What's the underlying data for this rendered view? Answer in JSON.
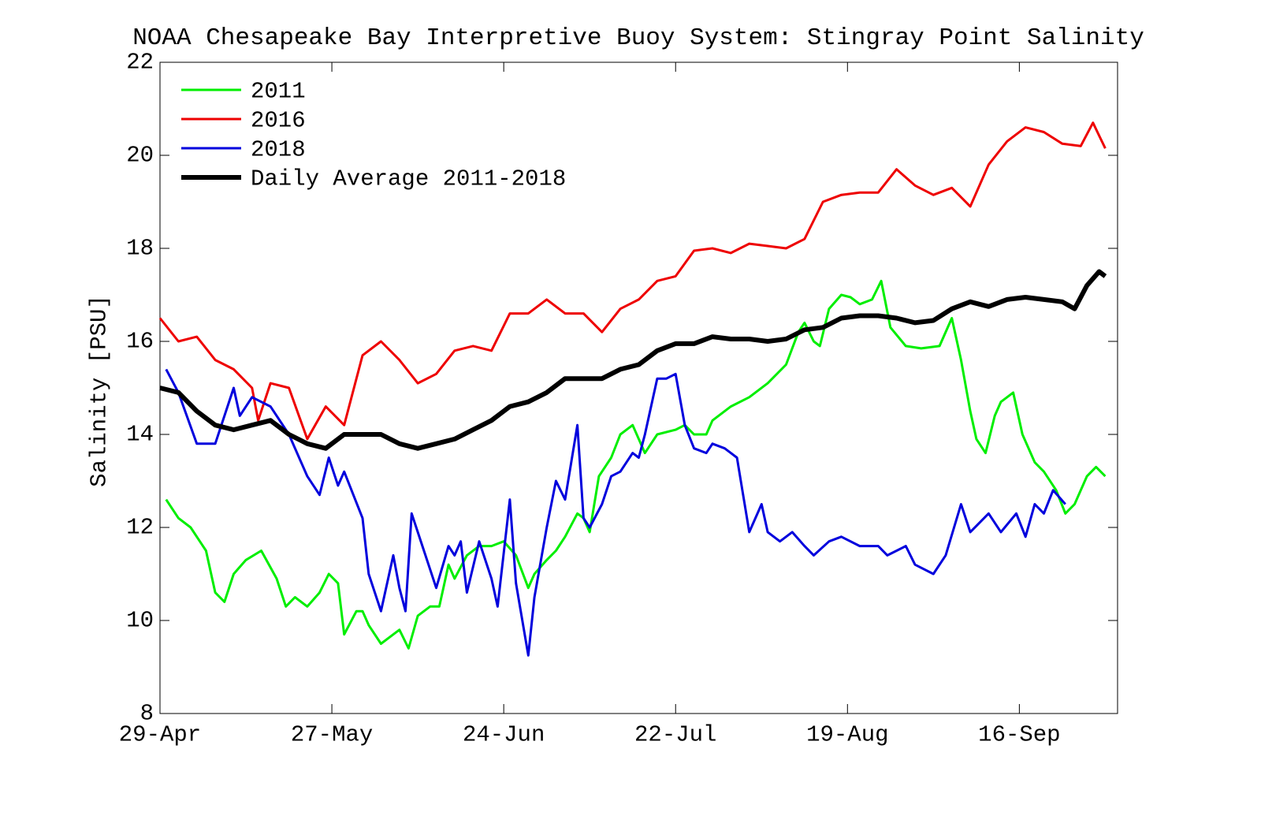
{
  "chart_data": {
    "type": "line",
    "title": "NOAA Chesapeake Bay Interpretive Buoy System: Stingray Point Salinity",
    "y_label": "Salinity [PSU]",
    "xlim": [
      0,
      156
    ],
    "xticks": [
      {
        "value": 0,
        "label": "29-Apr"
      },
      {
        "value": 28,
        "label": "27-May"
      },
      {
        "value": 56,
        "label": "24-Jun"
      },
      {
        "value": 84,
        "label": "22-Jul"
      },
      {
        "value": 112,
        "label": "19-Aug"
      },
      {
        "value": 140,
        "label": "16-Sep"
      }
    ],
    "ylim": [
      8,
      22
    ],
    "yticks": [
      8,
      10,
      12,
      14,
      16,
      18,
      20,
      22
    ],
    "legend": "upper left",
    "series": [
      {
        "name": "2011",
        "color": "#00ee00",
        "width": 3,
        "x": [
          1,
          3,
          5,
          7.5,
          9,
          10.5,
          12,
          14,
          16.5,
          19,
          20.5,
          22,
          24,
          26,
          27.5,
          29,
          30,
          32,
          33,
          34,
          36,
          38,
          39,
          40.5,
          42,
          44,
          45.5,
          47,
          48,
          50,
          52,
          54,
          56,
          58,
          60,
          61,
          63,
          64.5,
          66,
          68,
          69,
          70,
          71.5,
          73.5,
          75,
          77,
          79,
          81,
          84,
          85.5,
          87,
          89,
          90,
          93,
          96,
          99,
          102,
          104,
          105,
          106.5,
          107.5,
          109,
          111,
          112.5,
          114,
          116,
          117.5,
          119,
          121.5,
          124,
          127,
          129,
          130.5,
          132,
          133,
          134.5,
          136,
          137,
          139,
          140.5,
          142.5,
          144,
          146,
          147.5,
          149,
          151,
          152.5,
          154
        ],
        "values": [
          12.6,
          12.2,
          12.0,
          11.5,
          10.6,
          10.4,
          11.0,
          11.3,
          11.5,
          10.9,
          10.3,
          10.5,
          10.3,
          10.6,
          11.0,
          10.8,
          9.7,
          10.2,
          10.2,
          9.9,
          9.5,
          9.7,
          9.8,
          9.4,
          10.1,
          10.3,
          10.3,
          11.2,
          10.9,
          11.4,
          11.6,
          11.6,
          11.7,
          11.4,
          10.7,
          11.0,
          11.3,
          11.5,
          11.8,
          12.3,
          12.2,
          11.9,
          13.1,
          13.5,
          14.0,
          14.2,
          13.6,
          14.0,
          14.1,
          14.2,
          14.0,
          14.0,
          14.3,
          14.6,
          14.8,
          15.1,
          15.5,
          16.2,
          16.4,
          16.0,
          15.9,
          16.7,
          17.0,
          16.95,
          16.8,
          16.9,
          17.3,
          16.3,
          15.9,
          15.85,
          15.9,
          16.5,
          15.6,
          14.5,
          13.9,
          13.6,
          14.4,
          14.7,
          14.9,
          14.0,
          13.4,
          13.2,
          12.8,
          12.3,
          12.5,
          13.1,
          13.3,
          13.1
        ]
      },
      {
        "name": "2016",
        "color": "#ee0000",
        "width": 3,
        "x": [
          0,
          3,
          6,
          9,
          12,
          15,
          16,
          18,
          21,
          24,
          27,
          30,
          33,
          36,
          39,
          42,
          45,
          48,
          51,
          54,
          57,
          60,
          63,
          66,
          69,
          72,
          75,
          78,
          81,
          84,
          87,
          90,
          93,
          96,
          99,
          102,
          105,
          108,
          111,
          114,
          117,
          120,
          123,
          126,
          129,
          132,
          135,
          138,
          141,
          144,
          147,
          150,
          152,
          154
        ],
        "values": [
          16.5,
          16.0,
          16.1,
          15.6,
          15.4,
          15.0,
          14.3,
          15.1,
          15.0,
          13.9,
          14.6,
          14.2,
          15.7,
          16.0,
          15.6,
          15.1,
          15.3,
          15.8,
          15.9,
          15.8,
          16.6,
          16.6,
          16.9,
          16.6,
          16.6,
          16.2,
          16.7,
          16.9,
          17.3,
          17.4,
          17.95,
          18.0,
          17.9,
          18.1,
          18.05,
          18.0,
          18.2,
          19.0,
          19.15,
          19.2,
          19.2,
          19.7,
          19.35,
          19.15,
          19.3,
          18.9,
          19.8,
          20.3,
          20.6,
          20.5,
          20.25,
          20.2,
          20.7,
          20.15
        ]
      },
      {
        "name": "2018",
        "color": "#0000dd",
        "width": 3,
        "x": [
          1,
          3,
          6,
          9,
          12,
          13,
          15,
          18,
          21,
          24,
          26,
          27.5,
          29,
          30,
          33,
          34,
          36,
          38,
          39,
          40,
          41,
          43,
          45,
          47,
          48,
          49,
          50,
          52,
          54,
          55,
          57,
          58,
          60,
          61,
          63,
          64.5,
          66,
          68,
          69,
          70,
          72,
          73.5,
          75,
          77,
          78,
          79,
          81,
          82.5,
          84,
          85.5,
          87,
          89,
          90,
          92,
          93,
          94,
          95,
          96,
          98,
          99,
          101,
          103,
          105,
          106.5,
          109,
          111,
          114,
          117,
          118.5,
          121.5,
          123,
          126,
          128,
          130.5,
          132,
          135,
          137,
          139.5,
          141,
          142.5,
          144,
          145.5,
          147.5
        ],
        "values": [
          15.4,
          14.9,
          13.8,
          13.8,
          15.0,
          14.4,
          14.8,
          14.6,
          14.0,
          13.1,
          12.7,
          13.5,
          12.9,
          13.2,
          12.2,
          11.0,
          10.2,
          11.4,
          10.7,
          10.2,
          12.3,
          11.5,
          10.7,
          11.6,
          11.4,
          11.7,
          10.6,
          11.7,
          10.9,
          10.3,
          12.6,
          10.8,
          9.25,
          10.5,
          12.0,
          13.0,
          12.6,
          14.2,
          12.2,
          12.0,
          12.5,
          13.1,
          13.2,
          13.6,
          13.5,
          14.0,
          15.2,
          15.2,
          15.3,
          14.2,
          13.7,
          13.6,
          13.8,
          13.7,
          13.6,
          13.5,
          12.7,
          11.9,
          12.5,
          11.9,
          11.7,
          11.9,
          11.6,
          11.4,
          11.7,
          11.8,
          11.6,
          11.6,
          11.4,
          11.6,
          11.2,
          11.0,
          11.4,
          12.5,
          11.9,
          12.3,
          11.9,
          12.3,
          11.8,
          12.5,
          12.3,
          12.8,
          12.5
        ]
      },
      {
        "name": "Daily Average 2011-2018",
        "color": "#000000",
        "width": 6,
        "x": [
          0,
          3,
          6,
          9,
          12,
          15,
          18,
          21,
          24,
          27,
          30,
          33,
          36,
          39,
          42,
          45,
          48,
          51,
          54,
          57,
          60,
          63,
          66,
          69,
          72,
          75,
          78,
          81,
          84,
          87,
          90,
          93,
          96,
          99,
          102,
          105,
          108,
          111,
          114,
          117,
          120,
          123,
          126,
          129,
          132,
          135,
          138,
          141,
          144,
          147,
          149,
          151,
          153,
          154
        ],
        "values": [
          15.0,
          14.9,
          14.5,
          14.2,
          14.1,
          14.2,
          14.3,
          14.0,
          13.8,
          13.7,
          14.0,
          14.0,
          14.0,
          13.8,
          13.7,
          13.8,
          13.9,
          14.1,
          14.3,
          14.6,
          14.7,
          14.9,
          15.2,
          15.2,
          15.2,
          15.4,
          15.5,
          15.8,
          15.95,
          15.95,
          16.1,
          16.05,
          16.05,
          16.0,
          16.05,
          16.25,
          16.3,
          16.5,
          16.55,
          16.55,
          16.5,
          16.4,
          16.45,
          16.7,
          16.85,
          16.75,
          16.9,
          16.95,
          16.9,
          16.85,
          16.7,
          17.2,
          17.5,
          17.4
        ]
      }
    ]
  }
}
